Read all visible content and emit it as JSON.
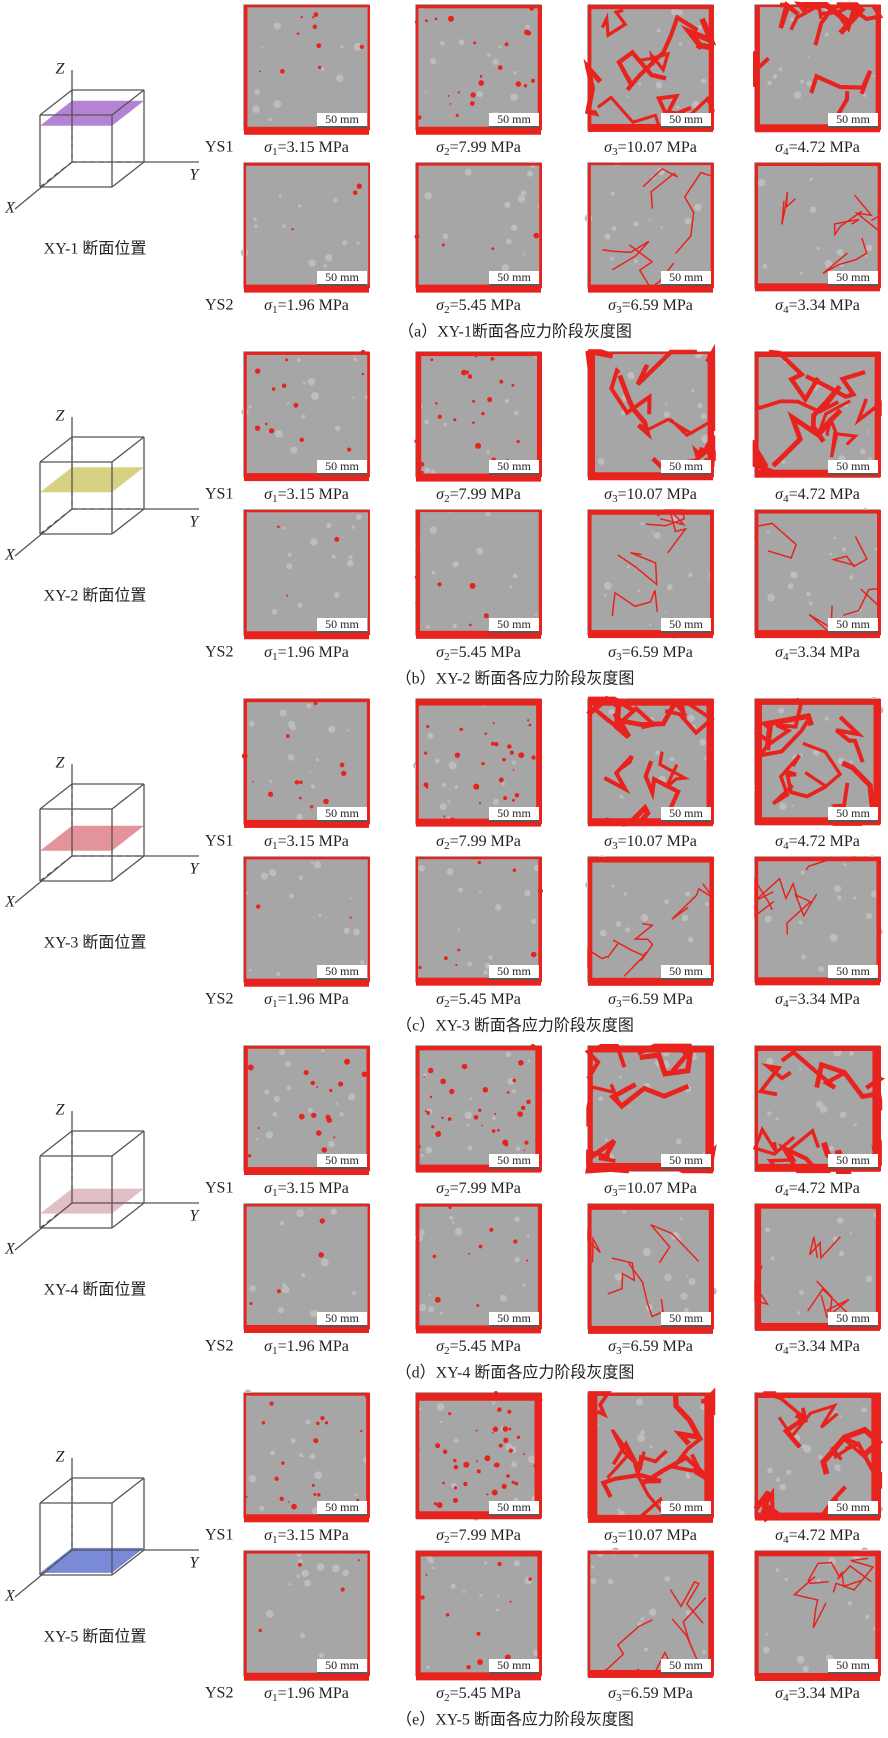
{
  "figure": {
    "groups": [
      {
        "axes": {
          "z": "Z",
          "x": "X",
          "y": "Y"
        },
        "section_label": "XY-1 断面位置",
        "caption": "（a）XY-1断面各应力阶段灰度图",
        "rows": [
          {
            "name": "YS1",
            "panels": [
              {
                "symbol": "σ",
                "sub": "1",
                "value": "=3.15 MPa",
                "scale": "50 mm"
              },
              {
                "symbol": "σ",
                "sub": "2",
                "value": "=7.99 MPa",
                "scale": "50 mm"
              },
              {
                "symbol": "σ",
                "sub": "3",
                "value": "=10.07 MPa",
                "scale": "50 mm"
              },
              {
                "symbol": "σ",
                "sub": "4",
                "value": "=4.72 MPa",
                "scale": "50 mm"
              }
            ]
          },
          {
            "name": "YS2",
            "panels": [
              {
                "symbol": "σ",
                "sub": "1",
                "value": "=1.96 MPa",
                "scale": "50 mm"
              },
              {
                "symbol": "σ",
                "sub": "2",
                "value": "=5.45 MPa",
                "scale": "50 mm"
              },
              {
                "symbol": "σ",
                "sub": "3",
                "value": "=6.59 MPa",
                "scale": "50 mm"
              },
              {
                "symbol": "σ",
                "sub": "4",
                "value": "=3.34 MPa",
                "scale": "50 mm"
              }
            ]
          }
        ]
      },
      {
        "axes": {
          "z": "Z",
          "x": "X",
          "y": "Y"
        },
        "section_label": "XY-2 断面位置",
        "caption": "（b）XY-2 断面各应力阶段灰度图",
        "rows": [
          {
            "name": "YS1",
            "panels": [
              {
                "symbol": "σ",
                "sub": "1",
                "value": "=3.15 MPa",
                "scale": "50 mm"
              },
              {
                "symbol": "σ",
                "sub": "2",
                "value": "=7.99 MPa",
                "scale": "50 mm"
              },
              {
                "symbol": "σ",
                "sub": "3",
                "value": "=10.07 MPa",
                "scale": "50 mm"
              },
              {
                "symbol": "σ",
                "sub": "4",
                "value": "=4.72 MPa",
                "scale": "50 mm"
              }
            ]
          },
          {
            "name": "YS2",
            "panels": [
              {
                "symbol": "σ",
                "sub": "1",
                "value": "=1.96 MPa",
                "scale": "50 mm"
              },
              {
                "symbol": "σ",
                "sub": "2",
                "value": "=5.45 MPa",
                "scale": "50 mm"
              },
              {
                "symbol": "σ",
                "sub": "3",
                "value": "=6.59 MPa",
                "scale": "50 mm"
              },
              {
                "symbol": "σ",
                "sub": "4",
                "value": "=3.34 MPa",
                "scale": "50 mm"
              }
            ]
          }
        ]
      },
      {
        "axes": {
          "z": "Z",
          "x": "X",
          "y": "Y"
        },
        "section_label": "XY-3 断面位置",
        "caption": "（c）XY-3 断面各应力阶段灰度图",
        "rows": [
          {
            "name": "YS1",
            "panels": [
              {
                "symbol": "σ",
                "sub": "1",
                "value": "=3.15 MPa",
                "scale": "50 mm"
              },
              {
                "symbol": "σ",
                "sub": "2",
                "value": "=7.99 MPa",
                "scale": "50 mm"
              },
              {
                "symbol": "σ",
                "sub": "3",
                "value": "=10.07 MPa",
                "scale": "50 mm"
              },
              {
                "symbol": "σ",
                "sub": "4",
                "value": "=4.72 MPa",
                "scale": "50 mm"
              }
            ]
          },
          {
            "name": "YS2",
            "panels": [
              {
                "symbol": "σ",
                "sub": "1",
                "value": "=1.96 MPa",
                "scale": "50 mm"
              },
              {
                "symbol": "σ",
                "sub": "2",
                "value": "=5.45 MPa",
                "scale": "50 mm"
              },
              {
                "symbol": "σ",
                "sub": "3",
                "value": "=6.59 MPa",
                "scale": "50 mm"
              },
              {
                "symbol": "σ",
                "sub": "4",
                "value": "=3.34 MPa",
                "scale": "50 mm"
              }
            ]
          }
        ]
      },
      {
        "axes": {
          "z": "Z",
          "x": "X",
          "y": "Y"
        },
        "section_label": "XY-4 断面位置",
        "caption": "（d）XY-4 断面各应力阶段灰度图",
        "rows": [
          {
            "name": "YS1",
            "panels": [
              {
                "symbol": "σ",
                "sub": "1",
                "value": "=3.15 MPa",
                "scale": "50 mm"
              },
              {
                "symbol": "σ",
                "sub": "2",
                "value": "=7.99 MPa",
                "scale": "50 mm"
              },
              {
                "symbol": "σ",
                "sub": "3",
                "value": "=10.07 MPa",
                "scale": "50 mm"
              },
              {
                "symbol": "σ",
                "sub": "4",
                "value": "=4.72 MPa",
                "scale": "50 mm"
              }
            ]
          },
          {
            "name": "YS2",
            "panels": [
              {
                "symbol": "σ",
                "sub": "1",
                "value": "=1.96 MPa",
                "scale": "50 mm"
              },
              {
                "symbol": "σ",
                "sub": "2",
                "value": "=5.45 MPa",
                "scale": "50 mm"
              },
              {
                "symbol": "σ",
                "sub": "3",
                "value": "=6.59 MPa",
                "scale": "50 mm"
              },
              {
                "symbol": "σ",
                "sub": "4",
                "value": "=3.34 MPa",
                "scale": "50 mm"
              }
            ]
          }
        ]
      },
      {
        "axes": {
          "z": "Z",
          "x": "X",
          "y": "Y"
        },
        "section_label": "XY-5 断面位置",
        "caption": "（e）XY-5 断面各应力阶段灰度图",
        "rows": [
          {
            "name": "YS1",
            "panels": [
              {
                "symbol": "σ",
                "sub": "1",
                "value": "=3.15 MPa",
                "scale": "50 mm"
              },
              {
                "symbol": "σ",
                "sub": "2",
                "value": "=7.99 MPa",
                "scale": "50 mm"
              },
              {
                "symbol": "σ",
                "sub": "3",
                "value": "=10.07 MPa",
                "scale": "50 mm"
              },
              {
                "symbol": "σ",
                "sub": "4",
                "value": "=4.72 MPa",
                "scale": "50 mm"
              }
            ]
          },
          {
            "name": "YS2",
            "panels": [
              {
                "symbol": "σ",
                "sub": "1",
                "value": "=1.96 MPa",
                "scale": "50 mm"
              },
              {
                "symbol": "σ",
                "sub": "2",
                "value": "=5.45 MPa",
                "scale": "50 mm"
              },
              {
                "symbol": "σ",
                "sub": "3",
                "value": "=6.59 MPa",
                "scale": "50 mm"
              },
              {
                "symbol": "σ",
                "sub": "4",
                "value": "=3.34 MPa",
                "scale": "50 mm"
              }
            ]
          }
        ]
      }
    ]
  }
}
